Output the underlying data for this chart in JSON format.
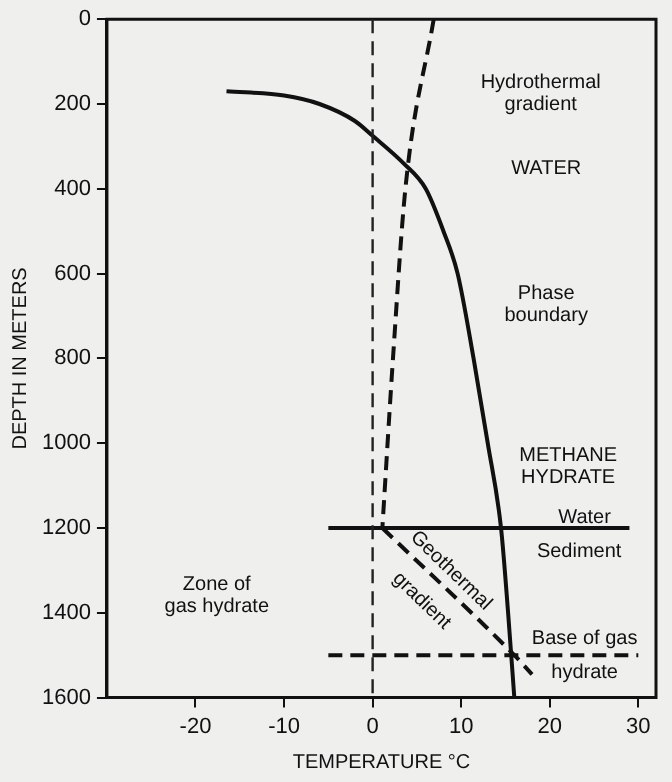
{
  "chart_data": {
    "type": "line",
    "xlabel": "TEMPERATURE °C",
    "ylabel": "DEPTH IN METERS",
    "xlim": [
      -30,
      32
    ],
    "ylim": [
      1600,
      0
    ],
    "xticks": [
      -20,
      -10,
      0,
      10,
      20,
      30
    ],
    "yticks": [
      0,
      200,
      400,
      600,
      800,
      1000,
      1200,
      1400,
      1600
    ],
    "grid": false,
    "legend": false,
    "marker": "none",
    "series": [
      {
        "color": "#111111",
        "line_style": "solid",
        "x": [
          -16.5,
          -10,
          -6,
          -2,
          0,
          3.5,
          6,
          8,
          9.6,
          11.4,
          13,
          14.5,
          15.3,
          16
        ],
        "values": [
          170,
          180,
          200,
          240,
          275,
          340,
          400,
          500,
          600,
          800,
          1000,
          1200,
          1400,
          1600
        ]
      },
      {
        "color": "#111111",
        "line_style": "dashed",
        "x": [
          6.9,
          3.7,
          2.3,
          1.1
        ],
        "values": [
          0,
          400,
          800,
          1200
        ]
      },
      {
        "color": "#111111",
        "line_style": "dashed",
        "x": [
          1.1,
          16,
          18
        ],
        "values": [
          1200,
          1500,
          1545
        ]
      },
      {
        "color": "#111111",
        "line_style": "solid",
        "x": [
          -5,
          29
        ],
        "values": [
          1200,
          1200
        ]
      },
      {
        "color": "#111111",
        "line_style": "dashed",
        "x": [
          -5,
          30
        ],
        "values": [
          1500,
          1500
        ]
      }
    ],
    "ref_lines": [
      {
        "axis": "x",
        "value": 0,
        "line_style": "dashed",
        "color": "#222222"
      }
    ],
    "annotations": [
      "Hydrothermal\ngradient",
      "WATER",
      "Phase\nboundary",
      "METHANE\nHYDRATE",
      "Water",
      "Sediment",
      "Zone of\ngas hydrate",
      "Geothermal\ngradient",
      "Base of gas\nhydrate"
    ]
  }
}
